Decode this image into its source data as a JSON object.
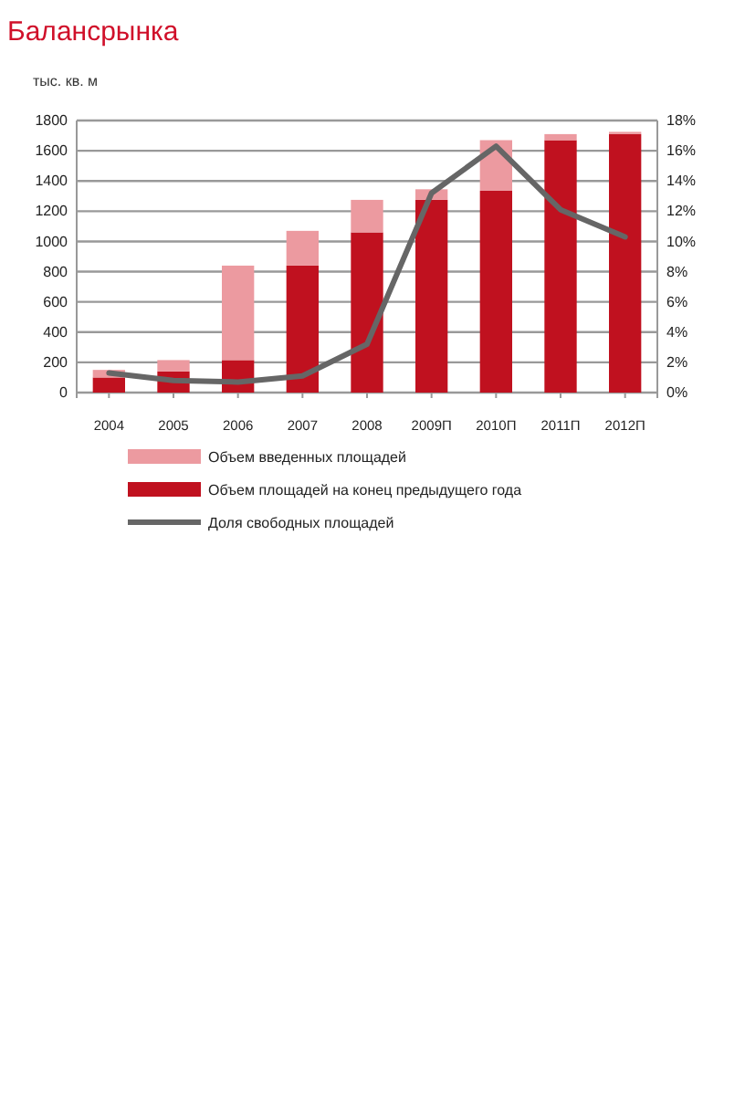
{
  "chart_data": {
    "type": "bar",
    "title": "Балансрынка",
    "ylabel": "тыс. кв. м",
    "categories": [
      "2004",
      "2005",
      "2006",
      "2007",
      "2008",
      "2009П",
      "2010П",
      "2011П",
      "2012П"
    ],
    "stacked": true,
    "series": [
      {
        "name": "Объем площадей на конец предыдущего года",
        "color": "#c0111f",
        "values": [
          100,
          140,
          215,
          840,
          1060,
          1275,
          1335,
          1670,
          1710
        ]
      },
      {
        "name": "Объем введенных площадей",
        "color": "#ec9aa0",
        "values": [
          50,
          75,
          625,
          230,
          215,
          70,
          335,
          40,
          15
        ]
      },
      {
        "name": "Доля свободных площадей",
        "type": "line",
        "axis": "y2",
        "color": "#666666",
        "values": [
          1.3,
          0.8,
          0.7,
          1.1,
          3.2,
          13.2,
          16.3,
          12.1,
          10.3
        ]
      }
    ],
    "ylim": [
      0,
      1800
    ],
    "yticks": [
      0,
      200,
      400,
      600,
      800,
      1000,
      1200,
      1400,
      1600,
      1800
    ],
    "y2lim": [
      0,
      18
    ],
    "y2ticks": [
      {
        "value": 0,
        "label": "0%"
      },
      {
        "value": 2,
        "label": "2%"
      },
      {
        "value": 4,
        "label": "4%"
      },
      {
        "value": 6,
        "label": "6%"
      },
      {
        "value": 8,
        "label": "8%"
      },
      {
        "value": 10,
        "label": "10%"
      },
      {
        "value": 12,
        "label": "12%"
      },
      {
        "value": 14,
        "label": "14%"
      },
      {
        "value": 16,
        "label": "16%"
      },
      {
        "value": 18,
        "label": "18%"
      }
    ],
    "grid": "y",
    "legend": "bottom",
    "marker": "none"
  }
}
